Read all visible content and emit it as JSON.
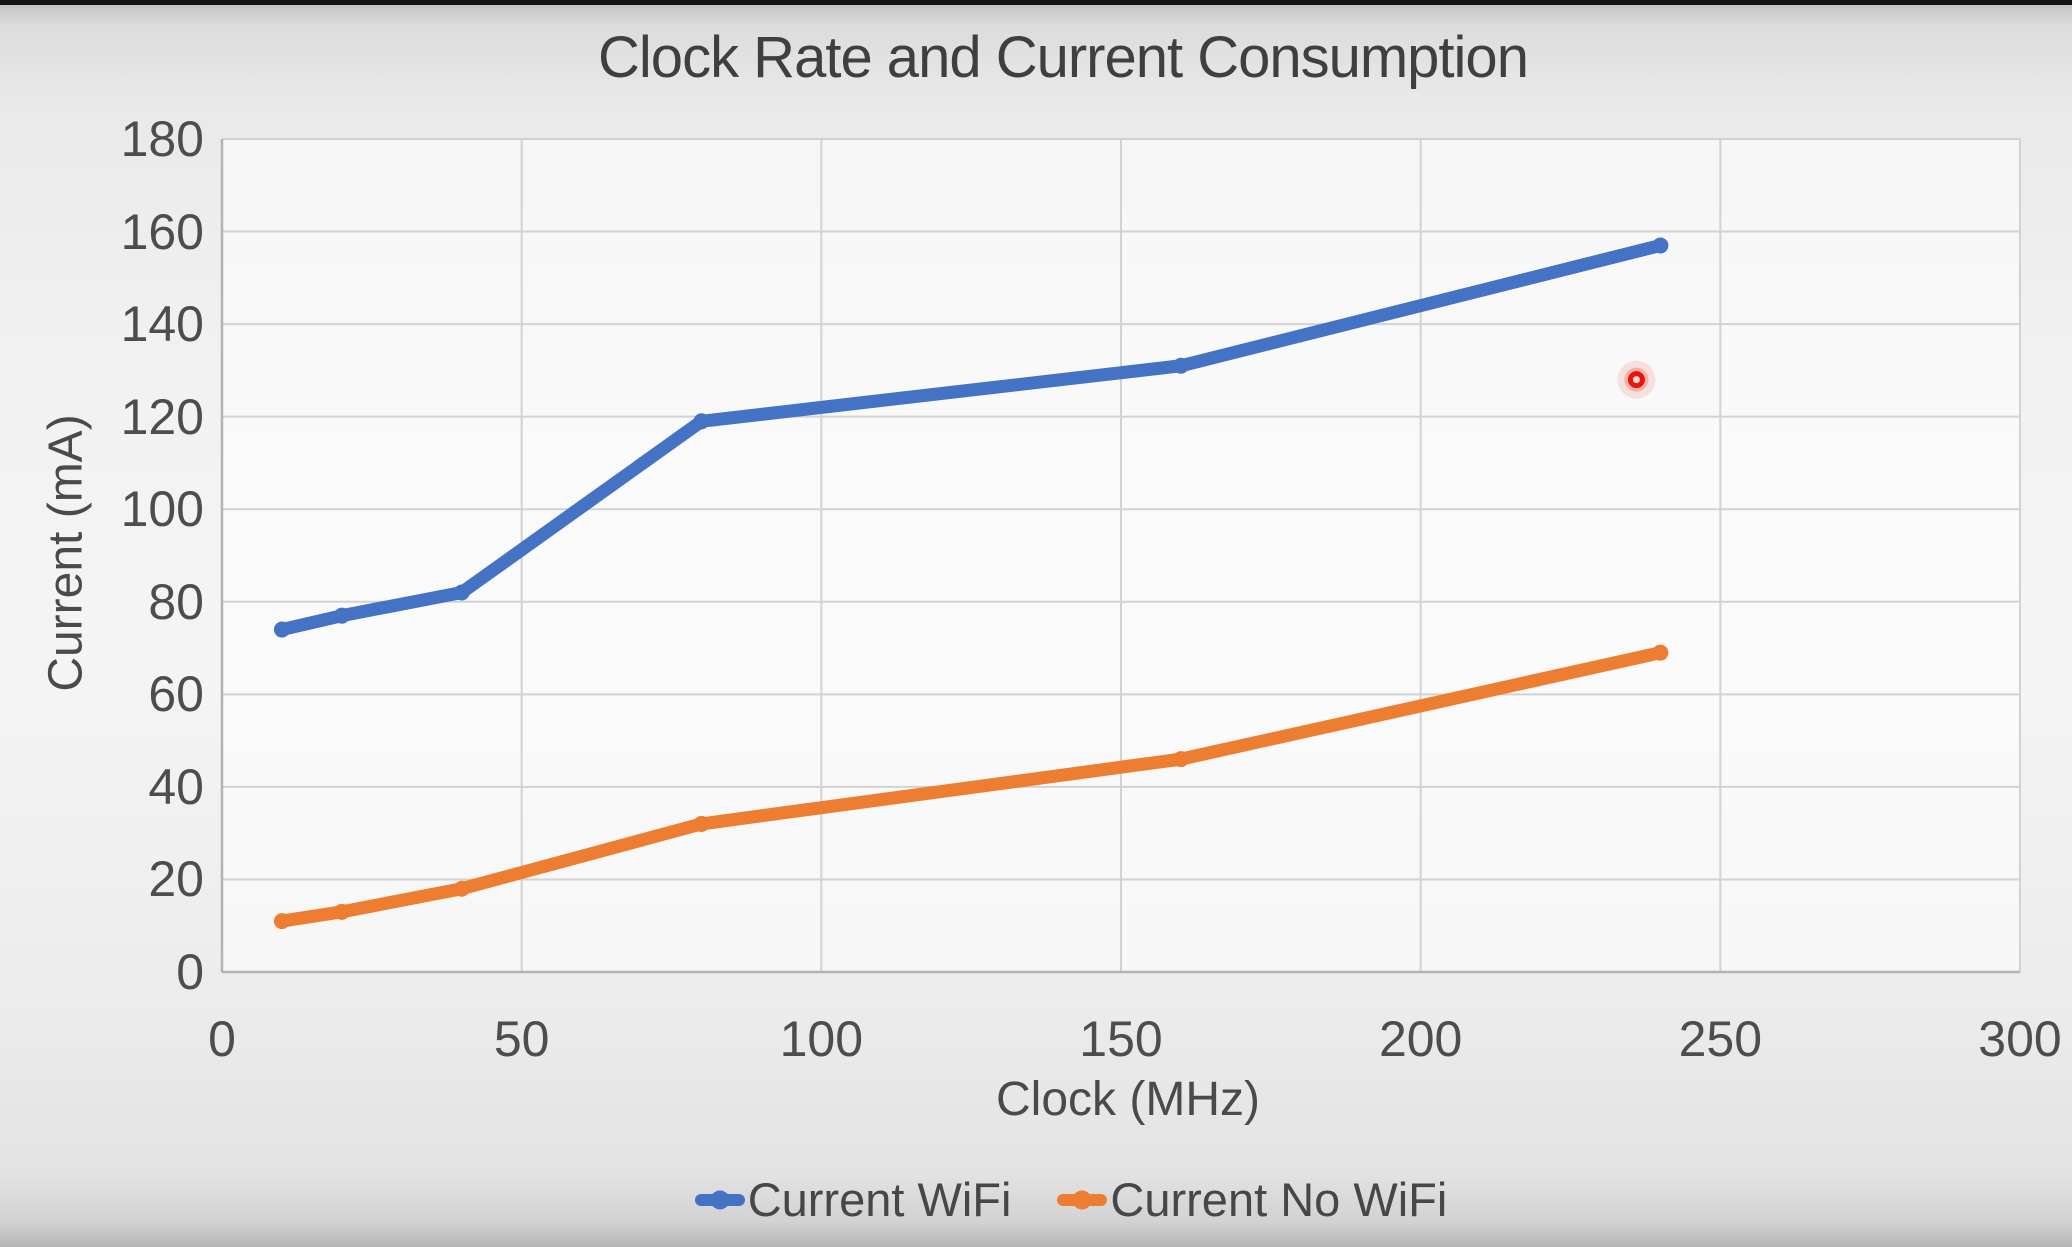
{
  "video_frame": {
    "letterbox_color": "#141414"
  },
  "chart_data": {
    "type": "line",
    "title": "Clock Rate and Current Consumption",
    "xlabel": "Clock (MHz)",
    "ylabel": "Current (mA)",
    "xlim": [
      0,
      300
    ],
    "ylim": [
      0,
      180
    ],
    "x_ticks": [
      0,
      50,
      100,
      150,
      200,
      250,
      300
    ],
    "y_ticks": [
      0,
      20,
      40,
      60,
      80,
      100,
      120,
      140,
      160,
      180
    ],
    "grid": true,
    "legend_position": "bottom-center",
    "series": [
      {
        "name": "Current WiFi",
        "color": "#4472C4",
        "x": [
          10,
          20,
          40,
          80,
          160,
          240
        ],
        "values": [
          74,
          77,
          82,
          119,
          131,
          157
        ]
      },
      {
        "name": "Current No WiFi",
        "color": "#ED7D31",
        "x": [
          10,
          20,
          40,
          80,
          160,
          240
        ],
        "values": [
          11,
          13,
          18,
          32,
          46,
          69
        ]
      }
    ],
    "annotations": [
      {
        "type": "laser-pointer-dot",
        "x": 236,
        "y": 128,
        "color": "#E8150D"
      }
    ]
  }
}
